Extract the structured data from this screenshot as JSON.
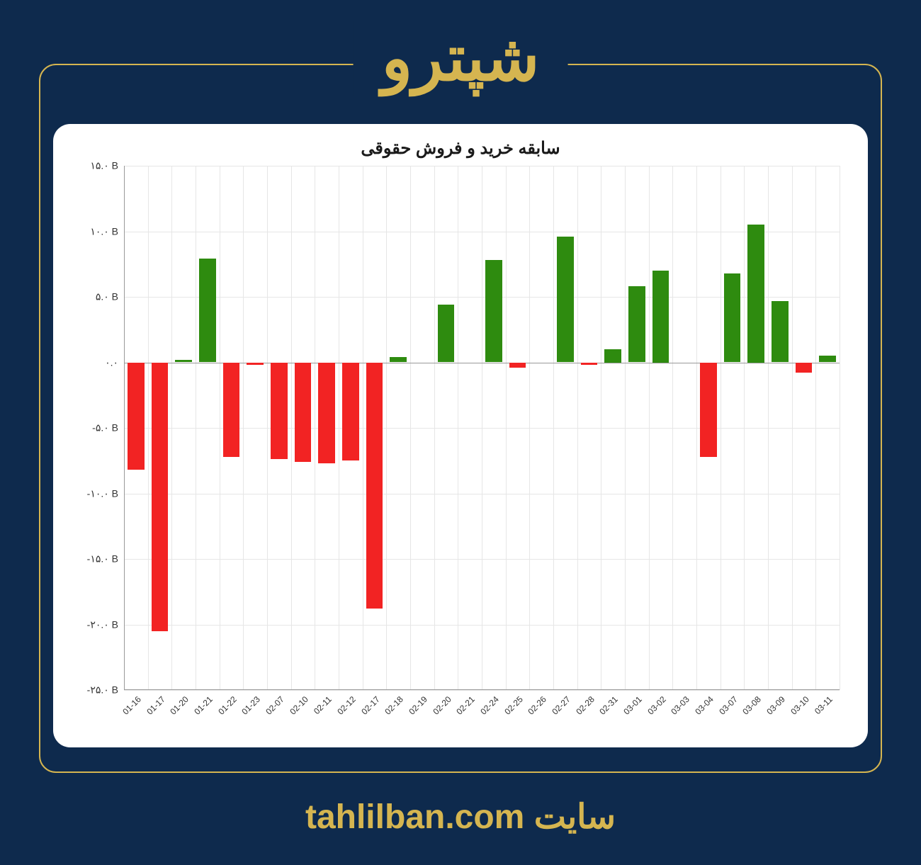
{
  "header": {
    "title": "شپترو"
  },
  "footer": {
    "site_label": "سایت",
    "site_url": "tahlilban.com"
  },
  "chart": {
    "type": "bar",
    "title": "سابقه خرید و فروش حقوقی",
    "background_color": "#ffffff",
    "positive_color": "#2e8b0f",
    "negative_color": "#f22323",
    "grid_color": "#e6e6e6",
    "axis_color": "#999999",
    "text_color": "#333333",
    "title_fontsize": 24,
    "tick_fontsize": 14,
    "xtick_fontsize": 12,
    "ylim": [
      -25,
      15
    ],
    "ytick_step": 5,
    "y_unit": "B",
    "y_tick_labels": [
      "-۲۵.۰ B",
      "-۲۰.۰ B",
      "-۱۵.۰ B",
      "-۱۰.۰ B",
      "-۵.۰ B",
      "۰.۰",
      "۵.۰ B",
      "۱۰.۰ B",
      "۱۵.۰ B"
    ],
    "y_tick_values": [
      -25,
      -20,
      -15,
      -10,
      -5,
      0,
      5,
      10,
      15
    ],
    "categories": [
      "01-16",
      "01-17",
      "01-20",
      "01-21",
      "01-22",
      "01-23",
      "02-07",
      "02-10",
      "02-11",
      "02-12",
      "02-17",
      "02-18",
      "02-19",
      "02-20",
      "02-21",
      "02-24",
      "02-25",
      "02-26",
      "02-27",
      "02-28",
      "02-31",
      "03-01",
      "03-02",
      "03-03",
      "03-04",
      "03-07",
      "03-08",
      "03-09",
      "03-10",
      "03-11"
    ],
    "values": [
      -8.2,
      -20.5,
      0.2,
      7.9,
      -7.2,
      -0.2,
      -7.4,
      -7.6,
      -7.7,
      -7.5,
      -18.8,
      0.4,
      0.0,
      4.4,
      0.0,
      7.8,
      -0.4,
      0.0,
      9.6,
      -0.2,
      1.0,
      5.8,
      7.0,
      0.0,
      -7.2,
      6.8,
      10.5,
      4.7,
      -0.8,
      0.5
    ],
    "bar_width_ratio": 0.7
  },
  "page": {
    "background_color": "#0e2a4d",
    "accent_color": "#d5b550",
    "frame_border_radius": 24
  }
}
